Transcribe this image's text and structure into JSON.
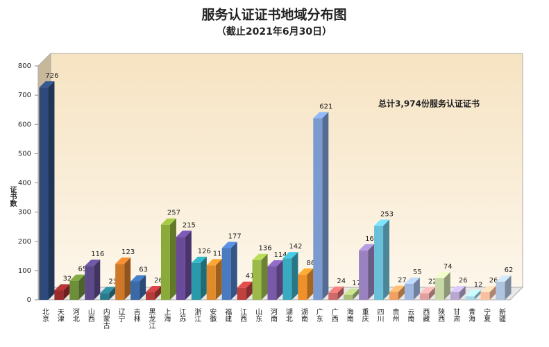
{
  "chart_data": {
    "type": "bar3d",
    "title": "服务认证证书地域分布图",
    "subtitle": "（截止2021年6月30日）",
    "y_label": "证书数",
    "annotation": "总计3,974份服务认证证书",
    "categories": [
      "北京",
      "天津",
      "河北",
      "山西",
      "内蒙古",
      "辽宁",
      "吉林",
      "黑龙江",
      "上海",
      "江苏",
      "浙江",
      "安徽",
      "福建",
      "江西",
      "山东",
      "河南",
      "湖北",
      "湖南",
      "广东",
      "广西",
      "海南",
      "重庆",
      "四川",
      "贵州",
      "云南",
      "西藏",
      "陕西",
      "甘肃",
      "青海",
      "宁夏",
      "新疆"
    ],
    "values": [
      726,
      32,
      65,
      116,
      23,
      123,
      63,
      26,
      257,
      215,
      126,
      118,
      177,
      41,
      136,
      114,
      142,
      86,
      621,
      24,
      17,
      169,
      253,
      27,
      55,
      22,
      74,
      26,
      12,
      26,
      62
    ],
    "colors": [
      "#2e4a7a",
      "#9b2c2c",
      "#6e8f3a",
      "#5d4a8a",
      "#2a7a8c",
      "#d0782a",
      "#3a6aa8",
      "#b53a3a",
      "#8aaa3a",
      "#6a4a9a",
      "#2a9aaa",
      "#e08a2a",
      "#4a7ac0",
      "#c04040",
      "#9aba4a",
      "#7a5aa8",
      "#3aaac0",
      "#f0902a",
      "#7a9ad0",
      "#d06a6a",
      "#aac07a",
      "#9a82c0",
      "#6ac0d8",
      "#f0a060",
      "#a0b8e0",
      "#e0a0a0",
      "#c8d8a8",
      "#b8a8d0",
      "#a8d8e8",
      "#f8c0a0",
      "#b0c4e0"
    ],
    "ylim": [
      0,
      800
    ],
    "yticks": [
      0,
      100,
      200,
      300,
      400,
      500,
      600,
      700,
      800
    ]
  }
}
